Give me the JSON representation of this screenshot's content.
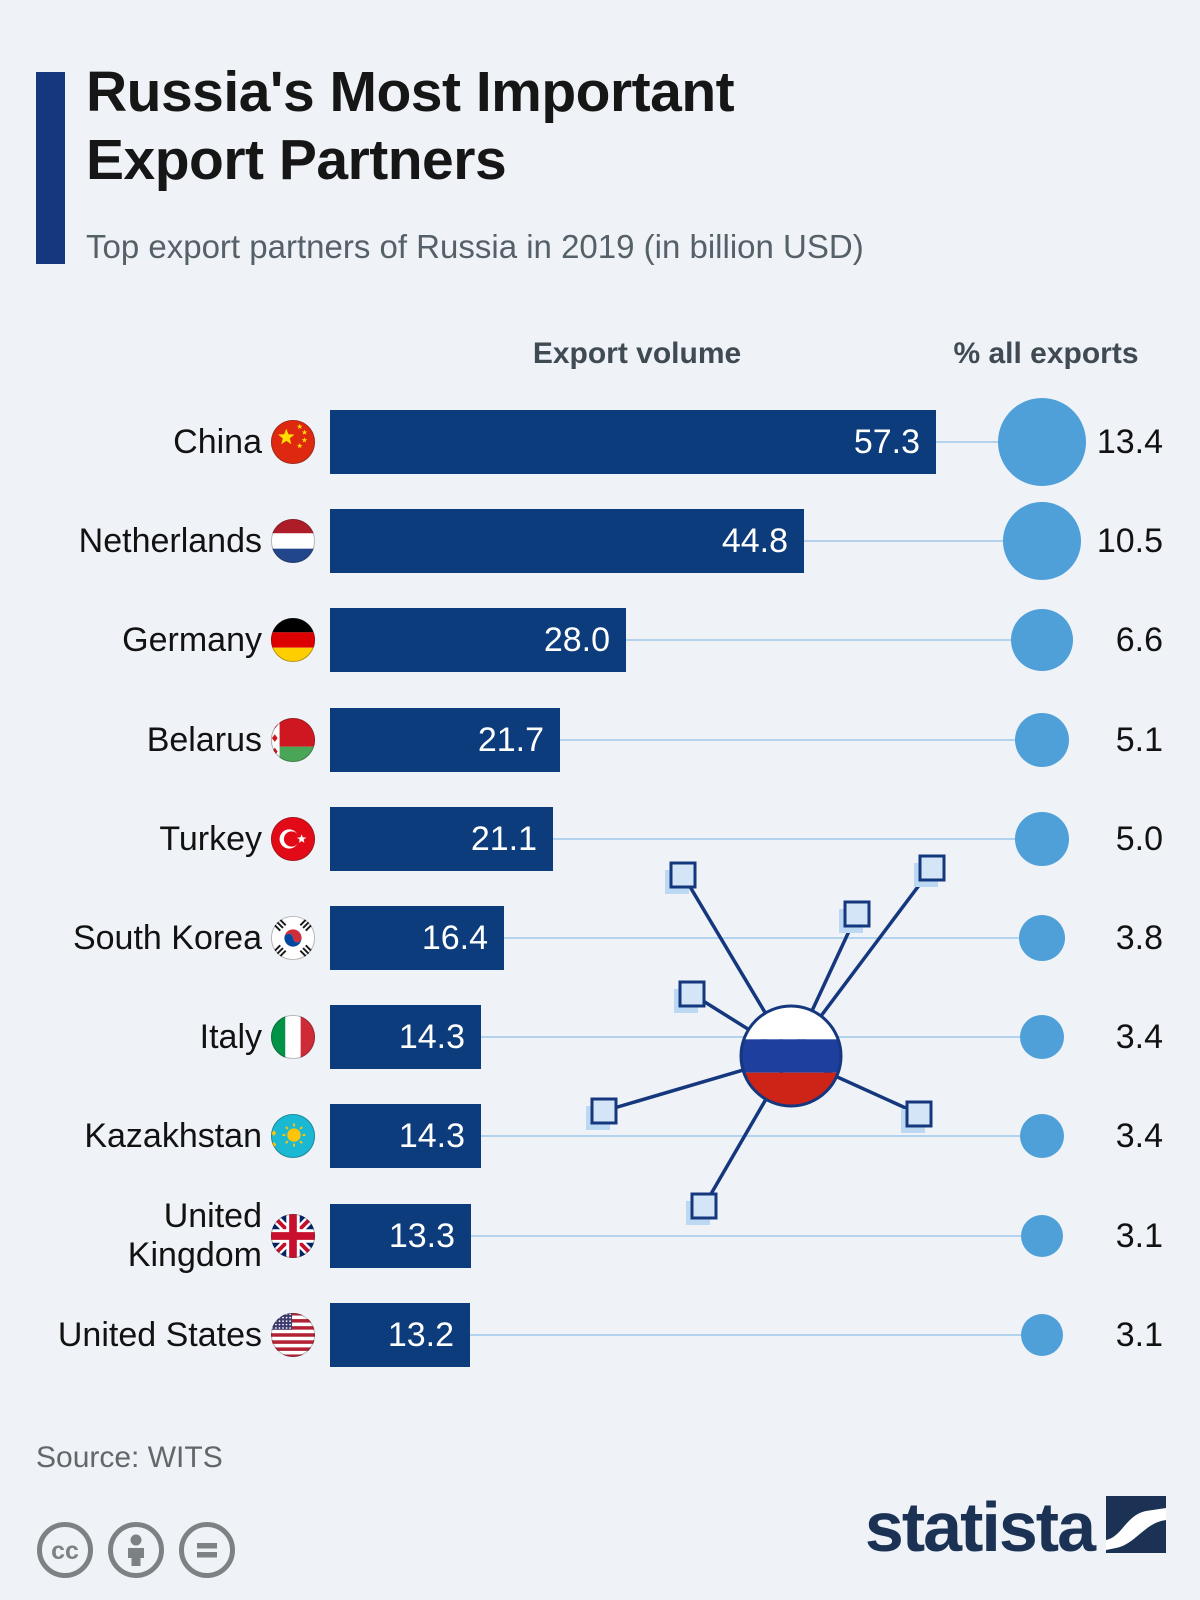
{
  "header": {
    "title": "Russia's Most Important\nExport Partners",
    "subtitle": "Top export partners of Russia in 2019 (in billion USD)"
  },
  "columns": {
    "volume_label": "Export volume",
    "pct_label": "% all exports"
  },
  "chart_data": {
    "type": "bar",
    "title": "Russia's Most Important Export Partners",
    "subtitle": "Top export partners of Russia in 2019 (in billion USD)",
    "orientation": "horizontal",
    "categories": [
      "China",
      "Netherlands",
      "Germany",
      "Belarus",
      "Turkey",
      "South Korea",
      "Italy",
      "Kazakhstan",
      "United Kingdom",
      "United States"
    ],
    "series": [
      {
        "name": "Export volume (billion USD)",
        "values": [
          57.3,
          44.8,
          28.0,
          21.7,
          21.1,
          16.4,
          14.3,
          14.3,
          13.3,
          13.2
        ]
      },
      {
        "name": "% all exports",
        "values": [
          13.4,
          10.5,
          6.6,
          5.1,
          5.0,
          3.8,
          3.4,
          3.4,
          3.1,
          3.1
        ]
      }
    ],
    "xlim": [
      0,
      60
    ],
    "grid": false,
    "legend_position": "column-headers",
    "value_labels_shown": true
  },
  "rows": [
    {
      "label": "China",
      "flag": "china",
      "flag_name": "china-flag-icon",
      "value": 57.3,
      "value_label": "57.3",
      "pct": 13.4,
      "pct_label": "13.4"
    },
    {
      "label": "Netherlands",
      "flag": "netherlands",
      "flag_name": "netherlands-flag-icon",
      "value": 44.8,
      "value_label": "44.8",
      "pct": 10.5,
      "pct_label": "10.5"
    },
    {
      "label": "Germany",
      "flag": "germany",
      "flag_name": "germany-flag-icon",
      "value": 28.0,
      "value_label": "28.0",
      "pct": 6.6,
      "pct_label": "6.6"
    },
    {
      "label": "Belarus",
      "flag": "belarus",
      "flag_name": "belarus-flag-icon",
      "value": 21.7,
      "value_label": "21.7",
      "pct": 5.1,
      "pct_label": "5.1"
    },
    {
      "label": "Turkey",
      "flag": "turkey",
      "flag_name": "turkey-flag-icon",
      "value": 21.1,
      "value_label": "21.1",
      "pct": 5.0,
      "pct_label": "5.0"
    },
    {
      "label": "South Korea",
      "flag": "southkorea",
      "flag_name": "south-korea-flag-icon",
      "value": 16.4,
      "value_label": "16.4",
      "pct": 3.8,
      "pct_label": "3.8"
    },
    {
      "label": "Italy",
      "flag": "italy",
      "flag_name": "italy-flag-icon",
      "value": 14.3,
      "value_label": "14.3",
      "pct": 3.4,
      "pct_label": "3.4"
    },
    {
      "label": "Kazakhstan",
      "flag": "kazakhstan",
      "flag_name": "kazakhstan-flag-icon",
      "value": 14.3,
      "value_label": "14.3",
      "pct": 3.4,
      "pct_label": "3.4"
    },
    {
      "label": "United\nKingdom",
      "flag": "uk",
      "flag_name": "united-kingdom-flag-icon",
      "value": 13.3,
      "value_label": "13.3",
      "pct": 3.1,
      "pct_label": "3.1"
    },
    {
      "label": "United States",
      "flag": "usa",
      "flag_name": "united-states-flag-icon",
      "value": 13.2,
      "value_label": "13.2",
      "pct": 3.1,
      "pct_label": "3.1"
    }
  ],
  "footer": {
    "source": "Source: WITS",
    "brand": "statista",
    "license_icons": [
      "cc-icon",
      "attribution-icon",
      "no-derivatives-icon"
    ]
  },
  "colors": {
    "background": "#eff3f8",
    "bar": "#0d3c7c",
    "bubble": "#4f9fd8",
    "connector": "#b3d2ee",
    "accent": "#15377d",
    "title": "#161616",
    "subtitle": "#566069",
    "header_label": "#3f4a52",
    "bar_value_text": "#ffffff",
    "label_text": "#121212",
    "source_text": "#63676a",
    "cc_gray": "#7c8184",
    "brand_navy": "#1b3254",
    "illustration_navy": "#15377d",
    "illustration_square_fill": "#d3e5f7",
    "illustration_square_shadow": "#bcd8f2",
    "russia_white": "#ffffff",
    "russia_blue": "#1e3f9d",
    "russia_red": "#ce2418"
  }
}
